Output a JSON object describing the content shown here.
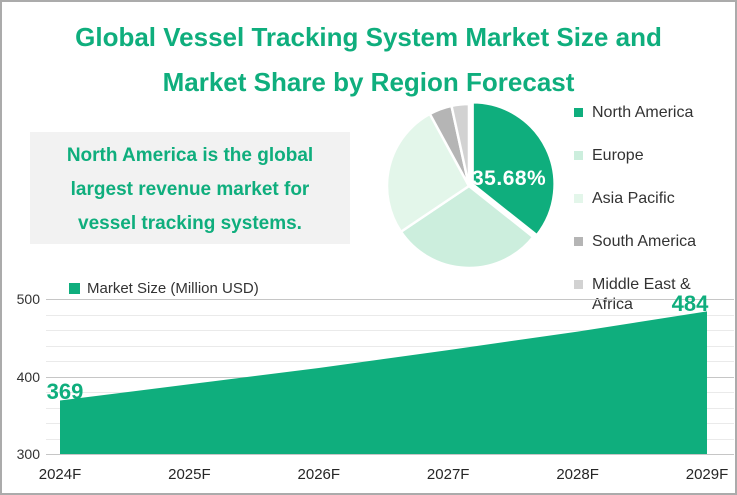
{
  "title": {
    "lines": [
      "Global Vessel Tracking System Market Size and",
      "Market Share by Region Forecast"
    ]
  },
  "insight": {
    "text": "North America is the global largest revenue market for vessel tracking systems.",
    "lines": [
      "North America is the global",
      "largest revenue market for",
      "vessel tracking systems."
    ]
  },
  "colors": {
    "primary_green": "#0fae7d",
    "europe_green": "#cceedd",
    "asia_pacific_green": "#e3f6ea",
    "south_america_gray": "#b5b5b5",
    "middle_east_africa_gray": "#d2d2d2",
    "insight_background": "#f2f2f2",
    "grid_major": "#c6c6c6",
    "grid_minor": "#eaeaea",
    "text_dark": "#333333",
    "frame_border": "#ababab"
  },
  "chart_data": [
    {
      "type": "pie",
      "title": "Market Share by Region",
      "direction": "clockwise",
      "start_angle_deg": 0,
      "legend_position": "right",
      "slices": [
        {
          "label": "North America",
          "value": 35.68,
          "color": "#0fae7d",
          "exploded": true,
          "data_label": "35.68%"
        },
        {
          "label": "Europe",
          "value": 29.9,
          "color": "#cceedd"
        },
        {
          "label": "Asia Pacific",
          "value": 26.5,
          "color": "#e3f6ea"
        },
        {
          "label": "South America",
          "value": 4.5,
          "color": "#b5b5b5"
        },
        {
          "label": "Middle East & Africa",
          "value": 3.42,
          "color": "#d2d2d2"
        }
      ]
    },
    {
      "type": "area",
      "legend_label": "Market Size (Million USD)",
      "categories": [
        "2024F",
        "2025F",
        "2026F",
        "2027F",
        "2028F",
        "2029F"
      ],
      "values": [
        369,
        390,
        411,
        434,
        458,
        484
      ],
      "value_labels": {
        "first": "369",
        "last": "484"
      },
      "ylim": [
        300,
        500
      ],
      "yticks": [
        300,
        400,
        500
      ],
      "minor_grid_step": 20,
      "grid": "on",
      "fill_color": "#0fae7d",
      "legend_position": "top-left"
    }
  ]
}
